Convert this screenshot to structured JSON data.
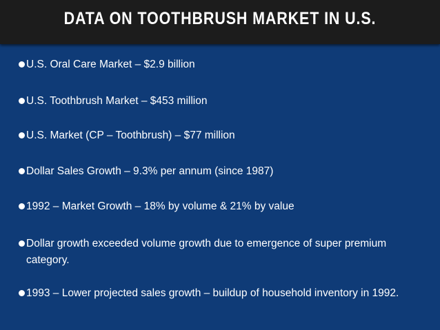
{
  "slide": {
    "title": "DATA ON TOOTHBRUSH MARKET IN U.S.",
    "bullets": [
      "U.S. Oral Care Market – $2.9 billion",
      "U.S. Toothbrush Market – $453 million",
      "U.S. Market (CP – Toothbrush) – $77 million",
      "Dollar Sales Growth – 9.3% per annum (since 1987)",
      "1992 – Market Growth – 18% by volume & 21% by value",
      "Dollar growth exceeded volume growth due to emergence of super premium category.",
      "1993 – Lower projected sales growth – buildup of household inventory in 1992."
    ]
  },
  "colors": {
    "background": "#0f3b77",
    "title_bar": "#1c1c1c",
    "text": "#ffffff"
  }
}
